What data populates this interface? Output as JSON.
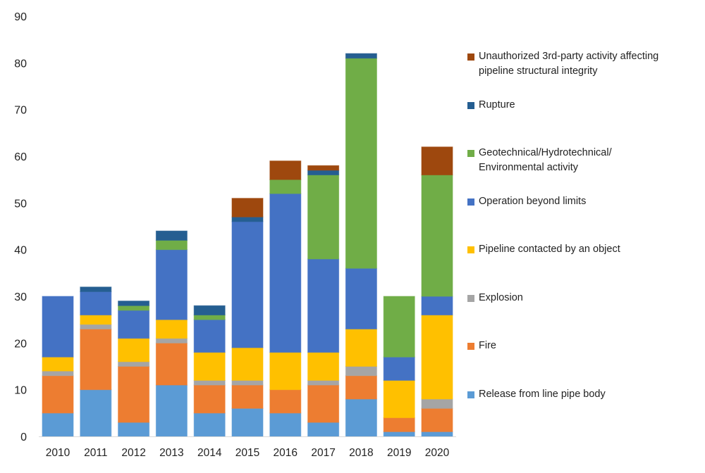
{
  "chart_data": {
    "type": "bar",
    "stacked": true,
    "title": "",
    "xlabel": "",
    "ylabel": "",
    "ylim": [
      0,
      90
    ],
    "yticks": [
      0,
      10,
      20,
      30,
      40,
      50,
      60,
      70,
      80,
      90
    ],
    "grid": false,
    "legend_placement": "right",
    "categories": [
      "2010",
      "2011",
      "2012",
      "2013",
      "2014",
      "2015",
      "2016",
      "2017",
      "2018",
      "2019",
      "2020"
    ],
    "series": [
      {
        "name": "Release from line pipe body",
        "color": "#5B9BD5",
        "values": [
          5,
          10,
          3,
          11,
          5,
          6,
          5,
          3,
          8,
          1,
          1
        ]
      },
      {
        "name": "Fire",
        "color": "#ED7D31",
        "values": [
          8,
          13,
          12,
          9,
          6,
          5,
          5,
          8,
          5,
          3,
          5
        ]
      },
      {
        "name": "Explosion",
        "color": "#A5A5A5",
        "values": [
          1,
          1,
          1,
          1,
          1,
          1,
          0,
          1,
          2,
          0,
          2
        ]
      },
      {
        "name": "Pipeline contacted by an object",
        "color": "#FFC000",
        "values": [
          3,
          2,
          5,
          4,
          6,
          7,
          8,
          6,
          8,
          8,
          18
        ]
      },
      {
        "name": "Operation beyond limits",
        "color": "#4472C4",
        "values": [
          13,
          5,
          6,
          15,
          7,
          27,
          34,
          20,
          13,
          5,
          4
        ]
      },
      {
        "name": "Geotechnical/Hydrotechnical/\nEnvironmental activity",
        "color": "#70AD47",
        "values": [
          0,
          0,
          1,
          2,
          1,
          0,
          3,
          18,
          45,
          13,
          26
        ]
      },
      {
        "name": "Rupture",
        "color": "#255E91",
        "values": [
          0,
          1,
          1,
          2,
          2,
          1,
          0,
          1,
          1,
          0,
          0
        ]
      },
      {
        "name": "Unauthorized 3rd-party activity affecting\npipeline structural integrity",
        "color": "#9E480E",
        "values": [
          0,
          0,
          0,
          0,
          0,
          4,
          4,
          1,
          0,
          0,
          6
        ]
      }
    ]
  }
}
